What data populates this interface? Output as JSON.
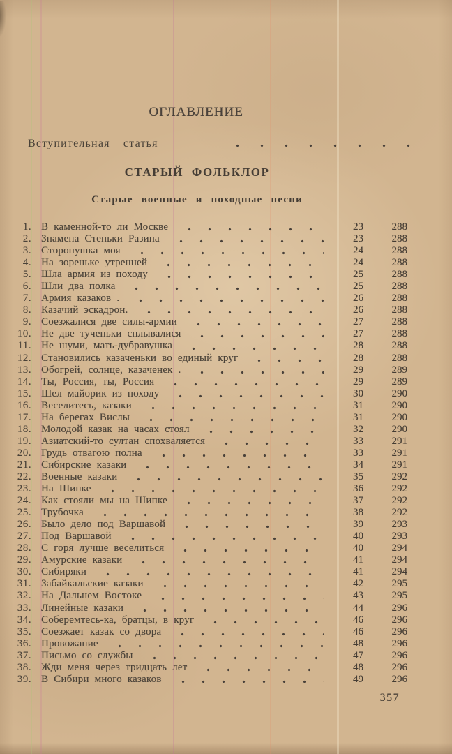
{
  "page": {
    "title": "ОГЛАВЛЕНИЕ",
    "intro_line": {
      "label": "Вступительная статья"
    },
    "section_heading": "СТАРЫЙ ФОЛЬКЛОР",
    "subsection_heading": "Старые военные и походные песни",
    "page_number": "357",
    "colors": {
      "paper": "#d2b590",
      "ink": "#4a4238"
    }
  },
  "toc": {
    "entries": [
      {
        "num": "1.",
        "title": "В каменной-то ли Москве",
        "page": "23",
        "notes_page": "288"
      },
      {
        "num": "2.",
        "title": "Знамена Стеньки Разина",
        "page": "23",
        "notes_page": "288"
      },
      {
        "num": "3.",
        "title": "Сторонушка моя",
        "page": "24",
        "notes_page": "288"
      },
      {
        "num": "4.",
        "title": "На зореньке утренней",
        "page": "24",
        "notes_page": "288"
      },
      {
        "num": "5.",
        "title": "Шла армия из походу",
        "page": "25",
        "notes_page": "288"
      },
      {
        "num": "6.",
        "title": "Шли два полка",
        "page": "25",
        "notes_page": "288"
      },
      {
        "num": "7.",
        "title": "Армия казаков .",
        "page": "26",
        "notes_page": "288"
      },
      {
        "num": "8.",
        "title": "Казачий эскадрон.",
        "page": "26",
        "notes_page": "288"
      },
      {
        "num": "9.",
        "title": "Соезжалися две силы-армии",
        "page": "27",
        "notes_page": "288"
      },
      {
        "num": "10.",
        "title": "Не две тученьки сплывалися",
        "page": "27",
        "notes_page": "288"
      },
      {
        "num": "11.",
        "title": "Не шуми, мать-дубравушка",
        "page": "28",
        "notes_page": "288"
      },
      {
        "num": "12.",
        "title": "Становились казаченьки во единый круг",
        "page": "28",
        "notes_page": "288"
      },
      {
        "num": "13.",
        "title": "Обогрей, солнце, казаченек .",
        "page": "29",
        "notes_page": "289"
      },
      {
        "num": "14.",
        "title": "Ты, Россия, ты, Россия",
        "page": "29",
        "notes_page": "289"
      },
      {
        "num": "15.",
        "title": "Шел майорик из походу",
        "page": "30",
        "notes_page": "290"
      },
      {
        "num": "16.",
        "title": "Веселитесь, казаки",
        "page": "31",
        "notes_page": "290"
      },
      {
        "num": "17.",
        "title": "На берегах Вислы",
        "page": "31",
        "notes_page": "290"
      },
      {
        "num": "18.",
        "title": "Молодой казак на часах стоял",
        "page": "32",
        "notes_page": "290"
      },
      {
        "num": "19.",
        "title": "Азиатский-то султан спохваляется",
        "page": "33",
        "notes_page": "291"
      },
      {
        "num": "20.",
        "title": "Грудь отвагою полна",
        "page": "33",
        "notes_page": "291"
      },
      {
        "num": "21.",
        "title": "Сибирские казаки",
        "page": "34",
        "notes_page": "291"
      },
      {
        "num": "22.",
        "title": "Военные казаки",
        "page": "35",
        "notes_page": "292"
      },
      {
        "num": "23.",
        "title": "На Шипке",
        "page": "36",
        "notes_page": "292"
      },
      {
        "num": "24.",
        "title": "Как стояли мы на Шипке",
        "page": "37",
        "notes_page": "292"
      },
      {
        "num": "25.",
        "title": "Трубочка",
        "page": "38",
        "notes_page": "292"
      },
      {
        "num": "26.",
        "title": "Было дело под Варшавой",
        "page": "39",
        "notes_page": "293"
      },
      {
        "num": "27.",
        "title": "Под Варшавой",
        "page": "40",
        "notes_page": "293"
      },
      {
        "num": "28.",
        "title": "С горя лучше веселиться",
        "page": "40",
        "notes_page": "294"
      },
      {
        "num": "29.",
        "title": "Амурские казаки",
        "page": "41",
        "notes_page": "294"
      },
      {
        "num": "30.",
        "title": "Сибиряки",
        "page": "41",
        "notes_page": "294"
      },
      {
        "num": "31.",
        "title": "Забайкальские казаки",
        "page": "42",
        "notes_page": "295"
      },
      {
        "num": "32.",
        "title": "На Дальнем Востоке",
        "page": "43",
        "notes_page": "295"
      },
      {
        "num": "33.",
        "title": "Линейные казаки",
        "page": "44",
        "notes_page": "296"
      },
      {
        "num": "34.",
        "title": "Соберемтесь-ка, братцы, в круг",
        "page": "46",
        "notes_page": "296"
      },
      {
        "num": "35.",
        "title": "Соезжает казак со двора",
        "page": "46",
        "notes_page": "296"
      },
      {
        "num": "36.",
        "title": "Провожание",
        "page": "48",
        "notes_page": "296"
      },
      {
        "num": "37.",
        "title": "Письмо со службы",
        "page": "47",
        "notes_page": "296"
      },
      {
        "num": "38.",
        "title": "Жди меня через тридцать лет",
        "page": "48",
        "notes_page": "296"
      },
      {
        "num": "39.",
        "title": "В Сибири много казаков",
        "page": "49",
        "notes_page": "296"
      }
    ]
  }
}
